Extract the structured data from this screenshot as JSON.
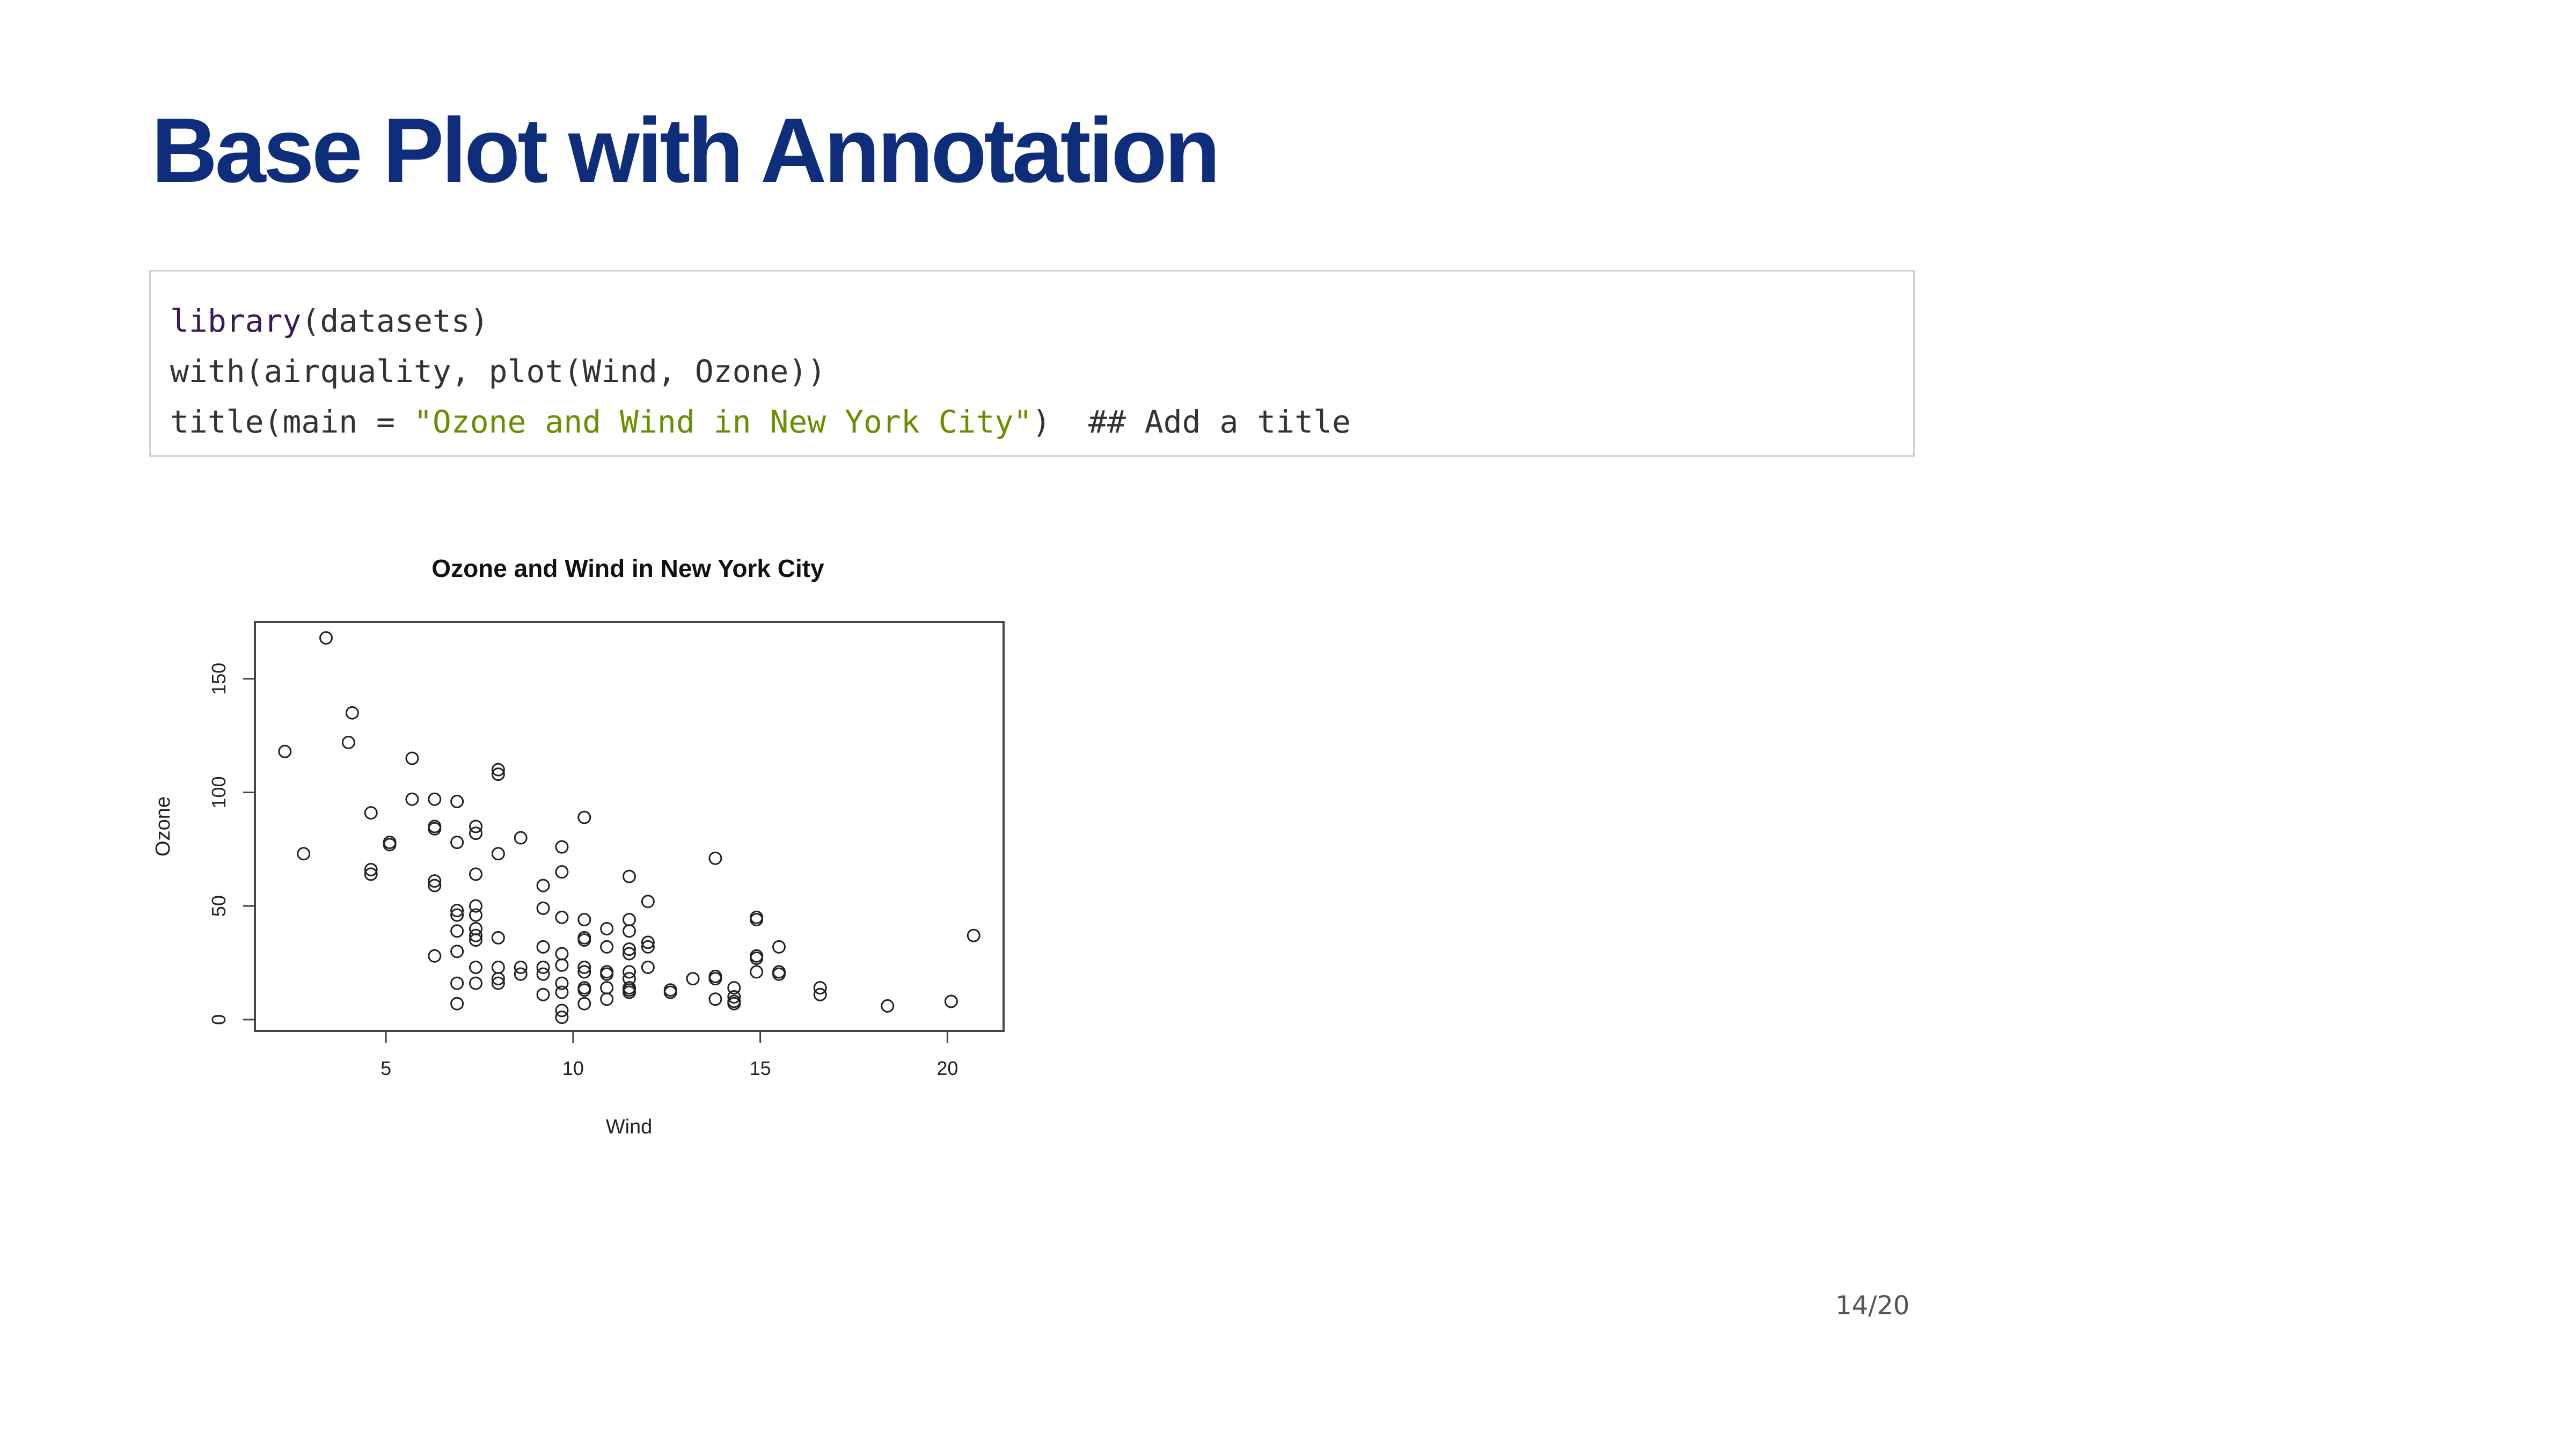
{
  "slide": {
    "title": "Base Plot with Annotation",
    "page_number": "14/20"
  },
  "code": {
    "line1_fn": "library",
    "line1_rest": "(datasets)",
    "line2": "with(airquality, plot(Wind, Ozone))",
    "line3_start": "title(main = ",
    "line3_string": "\"Ozone and Wind in New York City\"",
    "line3_end": ")  ## Add a title"
  },
  "colors": {
    "title": "#0e2e7c",
    "string_literal": "#6b8e00",
    "function_name": "#3a1a5a"
  },
  "chart_data": {
    "type": "scatter",
    "title": "Ozone and Wind in New York City",
    "xlabel": "Wind",
    "ylabel": "Ozone",
    "xlim": [
      1.5,
      21.5
    ],
    "ylim": [
      -5,
      175
    ],
    "xticks": [
      5,
      10,
      15,
      20
    ],
    "yticks": [
      0,
      50,
      100,
      150
    ],
    "grid": false,
    "marker": "open-circle",
    "points": [
      [
        2.3,
        118
      ],
      [
        2.8,
        73
      ],
      [
        3.4,
        168
      ],
      [
        4.0,
        122
      ],
      [
        4.1,
        135
      ],
      [
        4.6,
        91
      ],
      [
        4.6,
        66
      ],
      [
        4.6,
        64
      ],
      [
        5.1,
        78
      ],
      [
        5.1,
        77
      ],
      [
        5.7,
        115
      ],
      [
        5.7,
        97
      ],
      [
        6.3,
        97
      ],
      [
        6.3,
        85
      ],
      [
        6.3,
        84
      ],
      [
        6.3,
        61
      ],
      [
        6.3,
        59
      ],
      [
        6.3,
        28
      ],
      [
        6.9,
        96
      ],
      [
        6.9,
        78
      ],
      [
        6.9,
        48
      ],
      [
        6.9,
        46
      ],
      [
        6.9,
        39
      ],
      [
        6.9,
        30
      ],
      [
        6.9,
        16
      ],
      [
        6.9,
        7
      ],
      [
        7.4,
        85
      ],
      [
        7.4,
        82
      ],
      [
        7.4,
        64
      ],
      [
        7.4,
        50
      ],
      [
        7.4,
        46
      ],
      [
        7.4,
        40
      ],
      [
        7.4,
        37
      ],
      [
        7.4,
        35
      ],
      [
        7.4,
        23
      ],
      [
        7.4,
        16
      ],
      [
        8.0,
        110
      ],
      [
        8.0,
        108
      ],
      [
        8.0,
        73
      ],
      [
        8.0,
        36
      ],
      [
        8.0,
        23
      ],
      [
        8.0,
        18
      ],
      [
        8.0,
        16
      ],
      [
        8.6,
        80
      ],
      [
        8.6,
        23
      ],
      [
        8.6,
        20
      ],
      [
        9.2,
        59
      ],
      [
        9.2,
        49
      ],
      [
        9.2,
        32
      ],
      [
        9.2,
        23
      ],
      [
        9.2,
        20
      ],
      [
        9.2,
        11
      ],
      [
        9.7,
        76
      ],
      [
        9.7,
        65
      ],
      [
        9.7,
        45
      ],
      [
        9.7,
        29
      ],
      [
        9.7,
        24
      ],
      [
        9.7,
        16
      ],
      [
        9.7,
        12
      ],
      [
        9.7,
        4
      ],
      [
        9.7,
        1
      ],
      [
        10.3,
        89
      ],
      [
        10.3,
        44
      ],
      [
        10.3,
        36
      ],
      [
        10.3,
        35
      ],
      [
        10.3,
        23
      ],
      [
        10.3,
        21
      ],
      [
        10.3,
        14
      ],
      [
        10.3,
        13
      ],
      [
        10.3,
        7
      ],
      [
        10.9,
        40
      ],
      [
        10.9,
        32
      ],
      [
        10.9,
        21
      ],
      [
        10.9,
        20
      ],
      [
        10.9,
        14
      ],
      [
        10.9,
        9
      ],
      [
        11.5,
        63
      ],
      [
        11.5,
        44
      ],
      [
        11.5,
        39
      ],
      [
        11.5,
        31
      ],
      [
        11.5,
        29
      ],
      [
        11.5,
        21
      ],
      [
        11.5,
        18
      ],
      [
        11.5,
        14
      ],
      [
        11.5,
        13
      ],
      [
        11.5,
        12
      ],
      [
        12.0,
        52
      ],
      [
        12.0,
        34
      ],
      [
        12.0,
        32
      ],
      [
        12.0,
        23
      ],
      [
        12.6,
        13
      ],
      [
        12.6,
        12
      ],
      [
        13.2,
        18
      ],
      [
        13.8,
        71
      ],
      [
        13.8,
        19
      ],
      [
        13.8,
        18
      ],
      [
        13.8,
        9
      ],
      [
        14.3,
        14
      ],
      [
        14.3,
        10
      ],
      [
        14.3,
        8
      ],
      [
        14.3,
        7
      ],
      [
        14.9,
        45
      ],
      [
        14.9,
        44
      ],
      [
        14.9,
        28
      ],
      [
        14.9,
        27
      ],
      [
        14.9,
        21
      ],
      [
        15.5,
        32
      ],
      [
        15.5,
        21
      ],
      [
        15.5,
        20
      ],
      [
        16.6,
        14
      ],
      [
        16.6,
        11
      ],
      [
        18.4,
        6
      ],
      [
        20.1,
        8
      ],
      [
        20.7,
        37
      ]
    ]
  }
}
